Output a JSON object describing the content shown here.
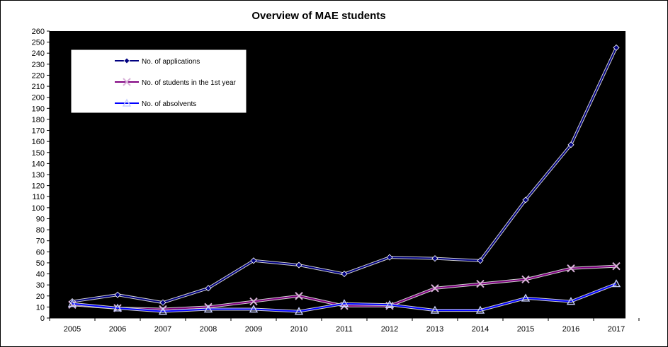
{
  "chart_data": {
    "type": "line",
    "title": "Overview of MAE students",
    "xlabel": "",
    "ylabel": "",
    "x": [
      "2005",
      "2006",
      "2007",
      "2008",
      "2009",
      "2010",
      "2011",
      "2012",
      "2013",
      "2014",
      "2015",
      "2016",
      "2017"
    ],
    "ylim": [
      0,
      260
    ],
    "ytick_step": 10,
    "grid": false,
    "plot_background": "#000000",
    "legend_position": "top-left",
    "series": [
      {
        "name": "No. of applications",
        "color": "#000080",
        "marker": "diamond",
        "values": [
          15,
          21,
          14,
          27,
          52,
          48,
          40,
          55,
          54,
          52,
          107,
          157,
          245
        ]
      },
      {
        "name": "No. of students in the 1st year",
        "color": "#800080",
        "marker": "x",
        "values": [
          12,
          9,
          8,
          10,
          15,
          20,
          11,
          11,
          27,
          31,
          35,
          45,
          47
        ]
      },
      {
        "name": "No. of absolvents",
        "color": "#0000FF",
        "marker": "triangle",
        "values": [
          13,
          9,
          6,
          8,
          8,
          6,
          13,
          12,
          7,
          7,
          18,
          15,
          31
        ]
      }
    ]
  }
}
